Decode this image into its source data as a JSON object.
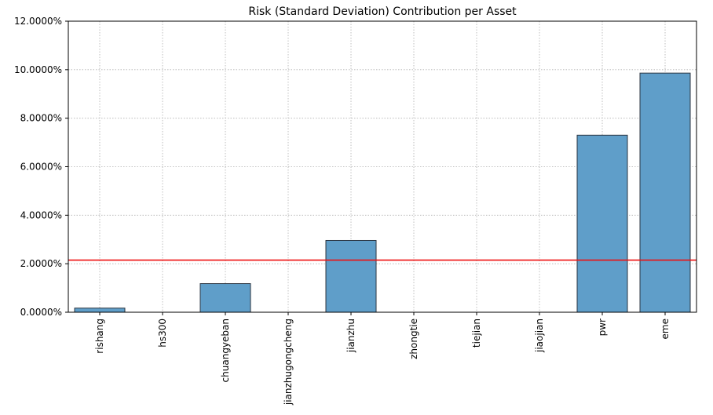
{
  "chart_data": {
    "type": "bar",
    "title": "Risk (Standard Deviation) Contribution per Asset",
    "xlabel": "",
    "ylabel": "",
    "categories": [
      "rishang",
      "hs300",
      "chuangyeban",
      "jianzhugongcheng",
      "jianzhu",
      "zhongtie",
      "tiejian",
      "jiaojian",
      "pwr",
      "eme"
    ],
    "values": [
      0.17,
      0.0,
      1.18,
      0.0,
      2.96,
      0.0,
      0.0,
      0.0,
      7.3,
      9.86
    ],
    "value_unit": "%",
    "ylim": [
      0,
      12
    ],
    "yticks": [
      "0.0000%",
      "2.0000%",
      "4.0000%",
      "6.0000%",
      "8.0000%",
      "10.0000%",
      "12.0000%"
    ],
    "reference_line": {
      "value": 2.15,
      "color": "#ee1111"
    },
    "bar_color": "#5f9ec9",
    "bar_edge_color": "#2b3440",
    "grid": true
  }
}
